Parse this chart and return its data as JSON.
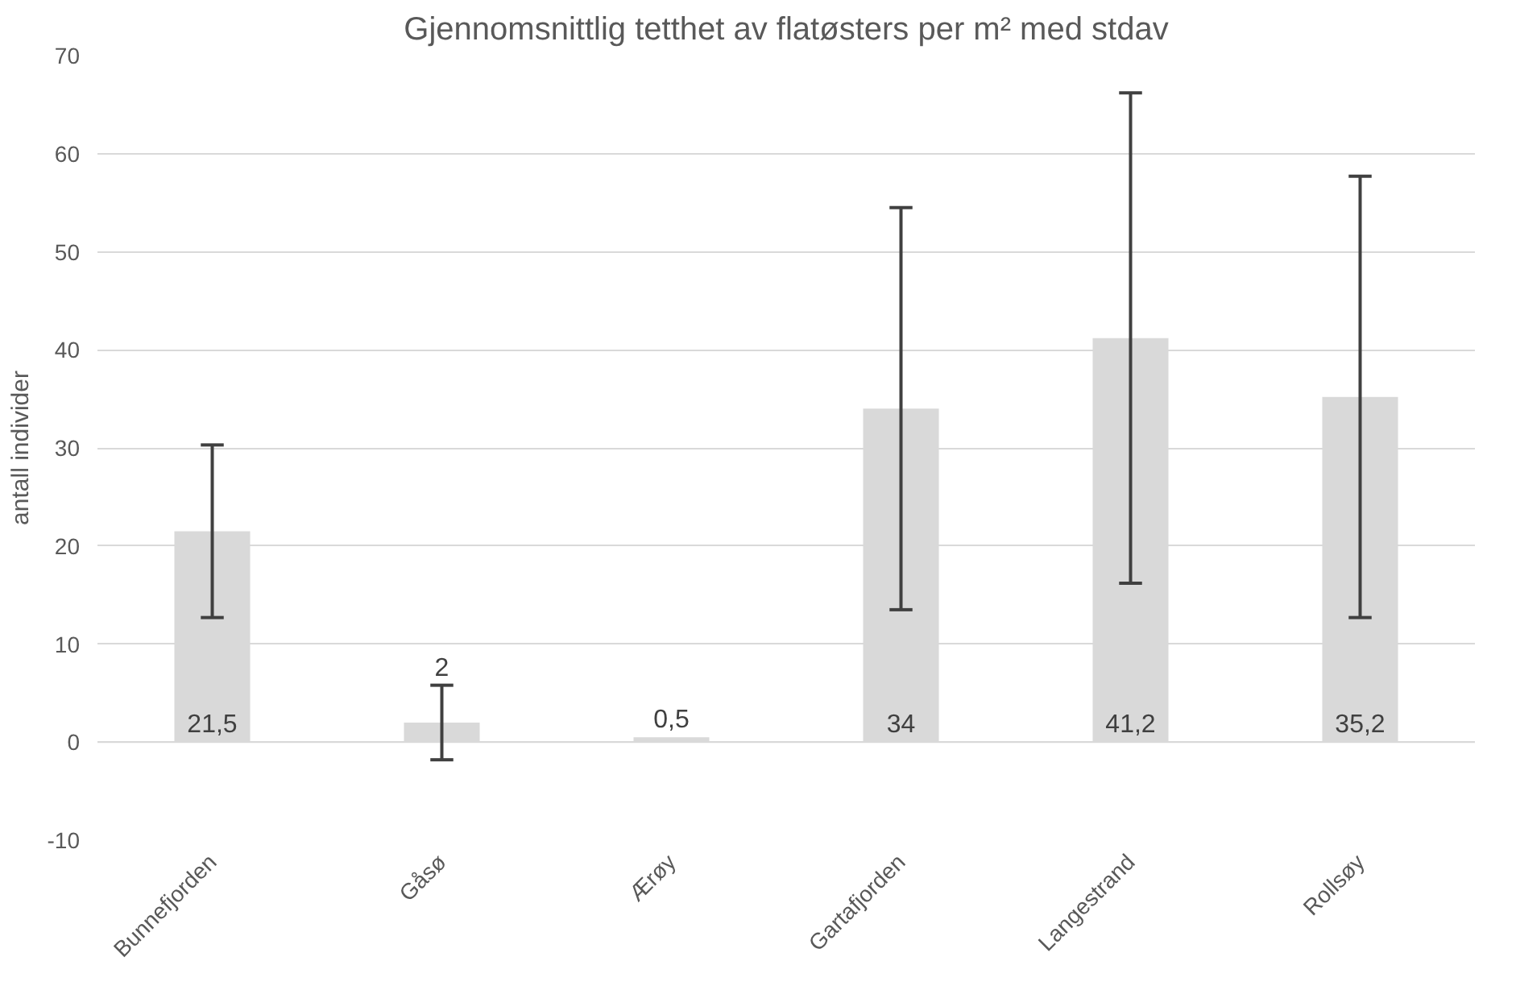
{
  "chart_data": {
    "type": "bar",
    "title": "Gjennomsnittlig tetthet av flatøsters per m² med stdav",
    "ylabel": "antall individer",
    "categories": [
      "Bunnefjorden",
      "Gåsø",
      "Ærøy",
      "Gartafjorden",
      "Langestrand",
      "Rollsøy"
    ],
    "values": [
      21.5,
      2,
      0.5,
      34,
      41.2,
      35.2
    ],
    "errors": [
      8.8,
      3.8,
      null,
      20.5,
      25,
      22.5
    ],
    "value_labels": [
      "21,5",
      "2",
      "0,5",
      "34",
      "41,2",
      "35,2"
    ],
    "color": "#d9d9d9",
    "ylim": [
      -10,
      70
    ],
    "yticks": [
      -10,
      0,
      10,
      20,
      30,
      40,
      50,
      60,
      70
    ],
    "grid": "y"
  }
}
